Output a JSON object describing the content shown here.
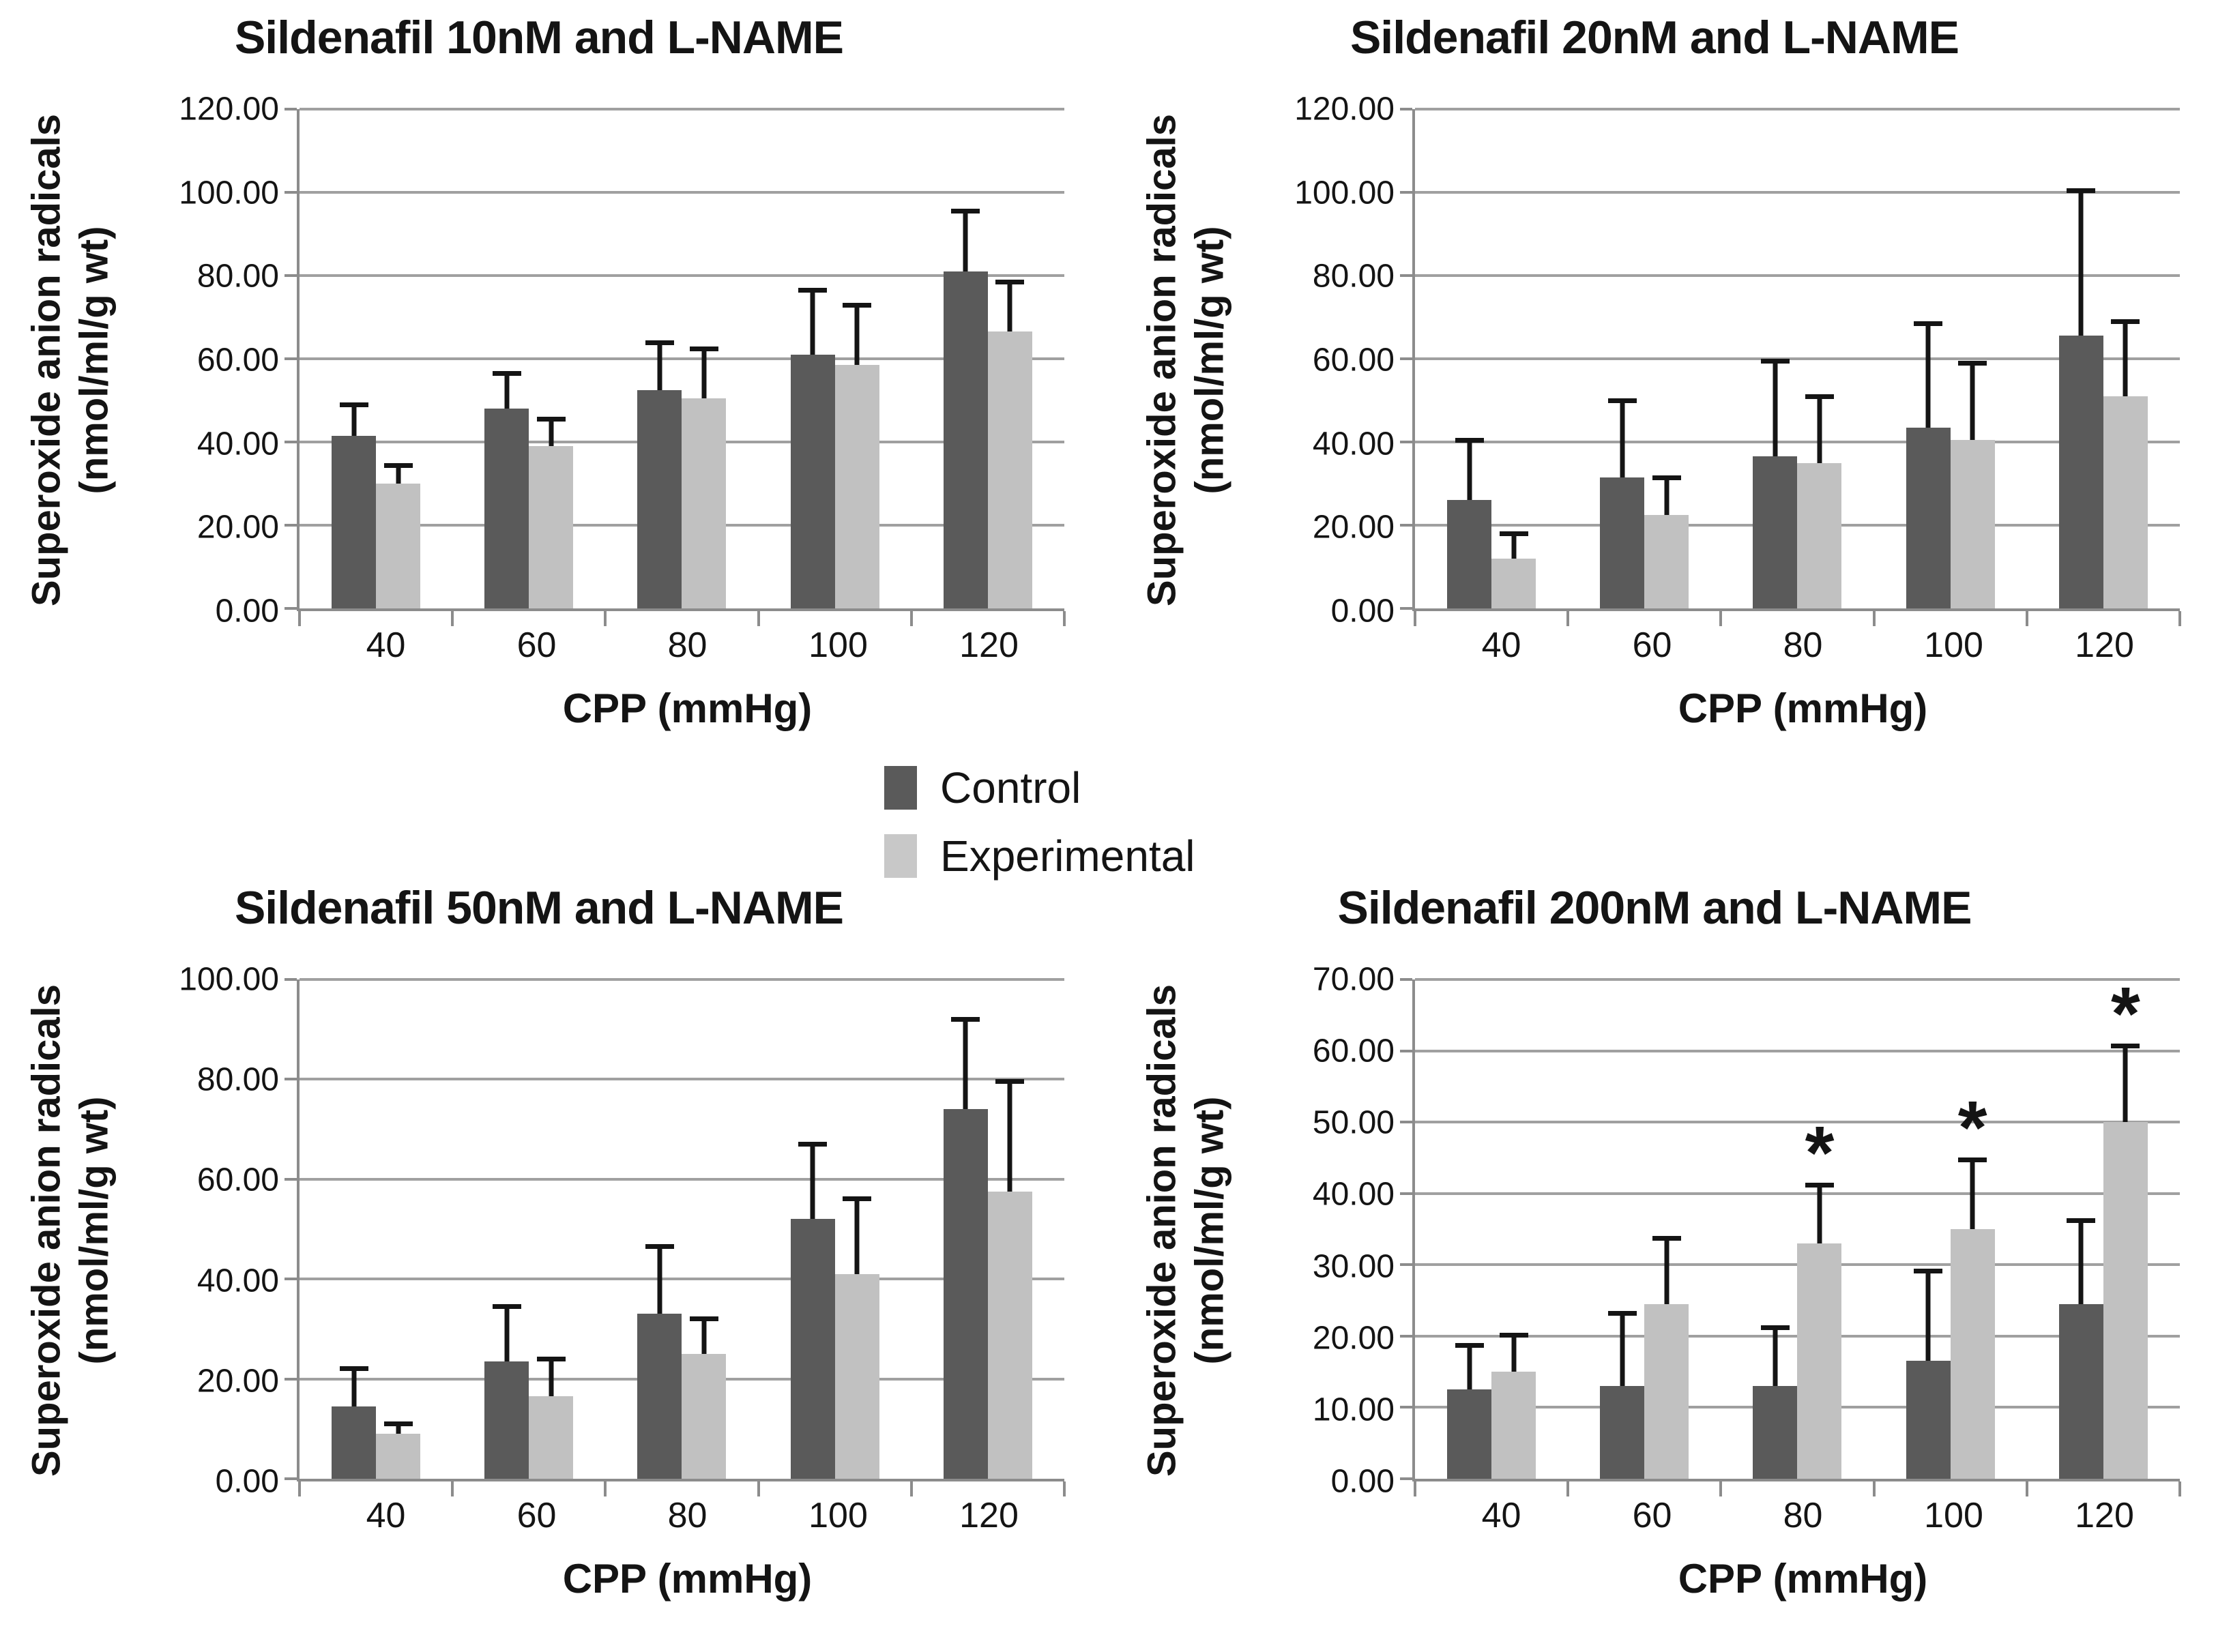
{
  "colors": {
    "control": "#5a5a5a",
    "experimental": "#c1c1c1",
    "gridline": "#a0a0a0",
    "axis": "#8c8c8c",
    "error_bar": "#141414",
    "text": "#141414",
    "background": "#ffffff"
  },
  "legend": {
    "position": "center-between-panels",
    "items": [
      {
        "label": "Control",
        "color": "#5a5a5a"
      },
      {
        "label": "Experimental",
        "color": "#c8c8c8"
      }
    ]
  },
  "chart_data": [
    {
      "type": "bar",
      "title": "Sildenafil 10nM and L-NAME",
      "xlabel": "CPP (mmHg)",
      "ylabel": "Superoxide anion radicals (nmol/ml/g wt)",
      "ylabel_lines": [
        "Superoxide anion radicals",
        "(nmol/ml/g wt)"
      ],
      "categories": [
        "40",
        "60",
        "80",
        "100",
        "120"
      ],
      "ylim": [
        0,
        120
      ],
      "ystep": 20,
      "grid": true,
      "ytick_labels": [
        "120.00",
        "100.00",
        "80.00",
        "60.00",
        "40.00",
        "20.00",
        "0.00"
      ],
      "series": [
        {
          "name": "Control",
          "values": [
            41.5,
            48,
            52.5,
            61,
            81
          ],
          "errors": [
            8,
            9,
            12,
            16,
            15
          ]
        },
        {
          "name": "Experimental",
          "values": [
            30,
            39,
            50.5,
            58.5,
            66.5
          ],
          "errors": [
            5,
            7,
            12.5,
            15,
            12.5
          ]
        }
      ]
    },
    {
      "type": "bar",
      "title": "Sildenafil 20nM and L-NAME",
      "xlabel": "CPP (mmHg)",
      "ylabel": "Superoxide anion radicals (nmol/ml/g wt)",
      "ylabel_lines": [
        "Superoxide anion radicals",
        "(nmol/ml/g wt)"
      ],
      "categories": [
        "40",
        "60",
        "80",
        "100",
        "120"
      ],
      "ylim": [
        0,
        120
      ],
      "ystep": 20,
      "grid": true,
      "ytick_labels": [
        "120.00",
        "100.00",
        "80.00",
        "60.00",
        "40.00",
        "20.00",
        "0.00"
      ],
      "series": [
        {
          "name": "Control",
          "values": [
            26,
            31.5,
            36.5,
            43.5,
            65.5
          ],
          "errors": [
            15,
            19,
            23.5,
            25.5,
            35.5
          ]
        },
        {
          "name": "Experimental",
          "values": [
            12,
            22.5,
            35,
            40.5,
            51
          ],
          "errors": [
            6.5,
            9.5,
            16.5,
            19,
            18.5
          ]
        }
      ]
    },
    {
      "type": "bar",
      "title": "Sildenafil 50nM and L-NAME",
      "xlabel": "CPP (mmHg)",
      "ylabel": "Superoxide anion radicals (nmol/ml/g wt)",
      "ylabel_lines": [
        "Superoxide anion radicals",
        "(nmol/ml/g wt)"
      ],
      "categories": [
        "40",
        "60",
        "80",
        "100",
        "120"
      ],
      "ylim": [
        0,
        100
      ],
      "ystep": 20,
      "grid": true,
      "ytick_labels": [
        "100.00",
        "80.00",
        "60.00",
        "40.00",
        "20.00",
        "0.00"
      ],
      "series": [
        {
          "name": "Control",
          "values": [
            14.5,
            23.5,
            33,
            52,
            74
          ],
          "errors": [
            8,
            11.5,
            14,
            15.5,
            18.5
          ]
        },
        {
          "name": "Experimental",
          "values": [
            9,
            16.5,
            25,
            41,
            57.5
          ],
          "errors": [
            2.5,
            8,
            7.5,
            15.5,
            22.5
          ]
        }
      ]
    },
    {
      "type": "bar",
      "title": "Sildenafil 200nM and L-NAME",
      "xlabel": "CPP (mmHg)",
      "ylabel": "Superoxide anion radicals (nmol/ml/g wt)",
      "ylabel_lines": [
        "Superoxide anion radicals",
        "(nmol/ml/g wt)"
      ],
      "categories": [
        "40",
        "60",
        "80",
        "100",
        "120"
      ],
      "ylim": [
        0,
        70
      ],
      "ystep": 10,
      "grid": true,
      "ytick_labels": [
        "70.00",
        "60.00",
        "50.00",
        "40.00",
        "30.00",
        "20.00",
        "10.00",
        "0.00"
      ],
      "series": [
        {
          "name": "Control",
          "values": [
            12.5,
            13,
            13,
            16.5,
            24.5
          ],
          "errors": [
            6.5,
            10.5,
            8.5,
            13,
            12
          ]
        },
        {
          "name": "Experimental",
          "values": [
            15,
            24.5,
            33,
            35,
            50
          ],
          "errors": [
            5.5,
            9.5,
            8.5,
            10,
            11
          ],
          "stars": [
            false,
            false,
            true,
            true,
            true
          ],
          "star_symbol": "*"
        }
      ]
    }
  ]
}
